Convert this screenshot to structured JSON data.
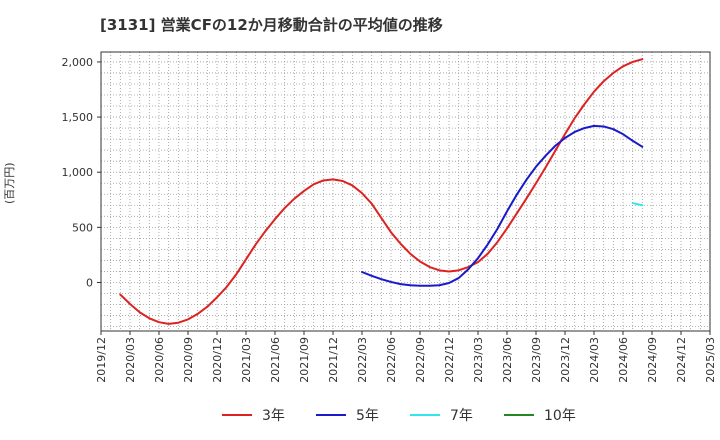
{
  "title": "[3131]  営業CFの12か月移動合計の平均値の推移",
  "y_unit_label": "(百万円)",
  "chart_data": {
    "type": "line",
    "title": "[3131]  営業CFの12か月移動合計の平均値の推移",
    "ylabel": "(百万円)",
    "xlabel": "",
    "ylim": [
      -440,
      2090
    ],
    "y_ticks": [
      0,
      500,
      1000,
      1500,
      2000
    ],
    "y_tick_labels": [
      "0",
      "500",
      "1,000",
      "1,500",
      "2,000"
    ],
    "x_ticks": [
      "2019/12",
      "2020/03",
      "2020/06",
      "2020/09",
      "2020/12",
      "2021/03",
      "2021/06",
      "2021/09",
      "2021/12",
      "2022/03",
      "2022/06",
      "2022/09",
      "2022/12",
      "2023/03",
      "2023/06",
      "2023/09",
      "2023/12",
      "2024/03",
      "2024/06",
      "2024/09",
      "2024/12",
      "2025/03"
    ],
    "grid": true,
    "legend_position": "bottom",
    "series": [
      {
        "name": "3年",
        "color": "#dd2222",
        "points": [
          [
            "2020/02",
            -110
          ],
          [
            "2020/03",
            -195
          ],
          [
            "2020/04",
            -270
          ],
          [
            "2020/05",
            -325
          ],
          [
            "2020/06",
            -360
          ],
          [
            "2020/07",
            -375
          ],
          [
            "2020/08",
            -365
          ],
          [
            "2020/09",
            -335
          ],
          [
            "2020/10",
            -285
          ],
          [
            "2020/11",
            -220
          ],
          [
            "2020/12",
            -135
          ],
          [
            "2021/01",
            -40
          ],
          [
            "2021/02",
            75
          ],
          [
            "2021/03",
            210
          ],
          [
            "2021/04",
            345
          ],
          [
            "2021/05",
            465
          ],
          [
            "2021/06",
            575
          ],
          [
            "2021/07",
            675
          ],
          [
            "2021/08",
            760
          ],
          [
            "2021/09",
            830
          ],
          [
            "2021/10",
            890
          ],
          [
            "2021/11",
            925
          ],
          [
            "2021/12",
            935
          ],
          [
            "2022/01",
            920
          ],
          [
            "2022/02",
            880
          ],
          [
            "2022/03",
            810
          ],
          [
            "2022/04",
            715
          ],
          [
            "2022/05",
            585
          ],
          [
            "2022/06",
            455
          ],
          [
            "2022/07",
            350
          ],
          [
            "2022/08",
            260
          ],
          [
            "2022/09",
            190
          ],
          [
            "2022/10",
            140
          ],
          [
            "2022/11",
            110
          ],
          [
            "2022/12",
            100
          ],
          [
            "2023/01",
            110
          ],
          [
            "2023/02",
            140
          ],
          [
            "2023/03",
            185
          ],
          [
            "2023/04",
            260
          ],
          [
            "2023/05",
            365
          ],
          [
            "2023/06",
            490
          ],
          [
            "2023/07",
            625
          ],
          [
            "2023/08",
            760
          ],
          [
            "2023/09",
            900
          ],
          [
            "2023/10",
            1045
          ],
          [
            "2023/11",
            1195
          ],
          [
            "2023/12",
            1345
          ],
          [
            "2024/01",
            1490
          ],
          [
            "2024/02",
            1615
          ],
          [
            "2024/03",
            1730
          ],
          [
            "2024/04",
            1825
          ],
          [
            "2024/05",
            1900
          ],
          [
            "2024/06",
            1960
          ],
          [
            "2024/07",
            2000
          ],
          [
            "2024/08",
            2025
          ]
        ]
      },
      {
        "name": "5年",
        "color": "#1a1acc",
        "points": [
          [
            "2022/03",
            95
          ],
          [
            "2022/04",
            60
          ],
          [
            "2022/05",
            30
          ],
          [
            "2022/06",
            5
          ],
          [
            "2022/07",
            -15
          ],
          [
            "2022/08",
            -25
          ],
          [
            "2022/09",
            -30
          ],
          [
            "2022/10",
            -30
          ],
          [
            "2022/11",
            -25
          ],
          [
            "2022/12",
            -5
          ],
          [
            "2023/01",
            40
          ],
          [
            "2023/02",
            120
          ],
          [
            "2023/03",
            220
          ],
          [
            "2023/04",
            345
          ],
          [
            "2023/05",
            485
          ],
          [
            "2023/06",
            645
          ],
          [
            "2023/07",
            795
          ],
          [
            "2023/08",
            930
          ],
          [
            "2023/09",
            1050
          ],
          [
            "2023/10",
            1150
          ],
          [
            "2023/11",
            1240
          ],
          [
            "2023/12",
            1310
          ],
          [
            "2024/01",
            1365
          ],
          [
            "2024/02",
            1400
          ],
          [
            "2024/03",
            1420
          ],
          [
            "2024/04",
            1415
          ],
          [
            "2024/05",
            1390
          ],
          [
            "2024/06",
            1345
          ],
          [
            "2024/07",
            1285
          ],
          [
            "2024/08",
            1230
          ]
        ]
      },
      {
        "name": "7年",
        "color": "#33e6ee",
        "points": [
          [
            "2024/07",
            720
          ],
          [
            "2024/08",
            700
          ]
        ]
      },
      {
        "name": "10年",
        "color": "#228822",
        "points": []
      }
    ]
  }
}
